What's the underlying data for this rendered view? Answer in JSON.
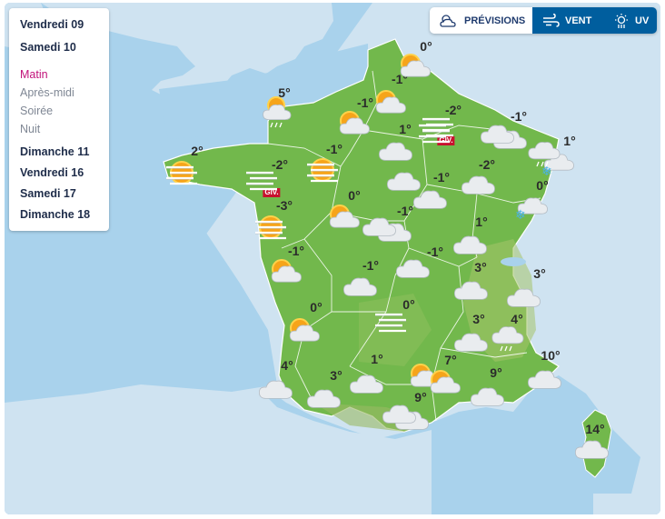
{
  "days": [
    {
      "label": "Vendredi 09"
    },
    {
      "label": "Samedi 10"
    },
    {
      "label": "Matin"
    },
    {
      "label": "Après-midi"
    },
    {
      "label": "Soirée"
    },
    {
      "label": "Nuit"
    },
    {
      "label": "Dimanche 11"
    },
    {
      "label": "Vendredi 16"
    },
    {
      "label": "Samedi 17"
    },
    {
      "label": "Dimanche 18"
    }
  ],
  "tabs": {
    "previsions": "PRÉVISIONS",
    "vent": "VENT",
    "uv": "UV"
  },
  "colors": {
    "sea": "#a9d2ec",
    "land_foreign": "#cfe3f1",
    "france": "#72b84c",
    "active_day": "#c2127a",
    "tab_active": "#005e9e",
    "giv_badge": "#c8102e"
  },
  "temperatures": [
    {
      "text": "0°"
    },
    {
      "text": "-1°"
    },
    {
      "text": "5°"
    },
    {
      "text": "-1°"
    },
    {
      "text": "-2°"
    },
    {
      "text": "1°"
    },
    {
      "text": "-1°"
    },
    {
      "text": "1°"
    },
    {
      "text": "2°"
    },
    {
      "text": "-1°"
    },
    {
      "text": "-2°"
    },
    {
      "text": "-2°"
    },
    {
      "text": "-1°"
    },
    {
      "text": "0°"
    },
    {
      "text": "0°"
    },
    {
      "text": "-3°"
    },
    {
      "text": "-1°"
    },
    {
      "text": "1°"
    },
    {
      "text": "-1°"
    },
    {
      "text": "-1°"
    },
    {
      "text": "3°"
    },
    {
      "text": "-1°"
    },
    {
      "text": "3°"
    },
    {
      "text": "0°"
    },
    {
      "text": "0°"
    },
    {
      "text": "3°"
    },
    {
      "text": "4°"
    },
    {
      "text": "4°"
    },
    {
      "text": "1°"
    },
    {
      "text": "7°"
    },
    {
      "text": "10°"
    },
    {
      "text": "3°"
    },
    {
      "text": "9°"
    },
    {
      "text": "9°"
    },
    {
      "text": "14°"
    }
  ],
  "giv_labels": [
    {
      "text": "GIV."
    },
    {
      "text": "GIV."
    }
  ],
  "weather_icons": [
    {
      "name": "sun-cloud-icon"
    },
    {
      "name": "sun-cloud-rain-icon"
    },
    {
      "name": "sun-cloud-icon"
    },
    {
      "name": "sun-cloud-icon"
    },
    {
      "name": "fog-icon"
    },
    {
      "name": "fog-icon"
    },
    {
      "name": "cloud-icon"
    },
    {
      "name": "cloud-icon"
    },
    {
      "name": "cloud-icon"
    },
    {
      "name": "cloud-snow-icon"
    },
    {
      "name": "sun-fog-icon"
    },
    {
      "name": "fog-icon"
    },
    {
      "name": "sun-fog-icon"
    },
    {
      "name": "sun-cloud-icon"
    },
    {
      "name": "cloud-icon"
    },
    {
      "name": "cloud-icon"
    },
    {
      "name": "cloud-snow-icon"
    },
    {
      "name": "sun-fog-icon"
    },
    {
      "name": "cloud-icon"
    },
    {
      "name": "cloud-icon"
    },
    {
      "name": "cloud-icon"
    },
    {
      "name": "sun-cloud-icon"
    },
    {
      "name": "cloud-icon"
    },
    {
      "name": "cloud-icon"
    },
    {
      "name": "cloud-icon"
    },
    {
      "name": "cloud-icon"
    },
    {
      "name": "fog-icon"
    },
    {
      "name": "sun-cloud-icon"
    },
    {
      "name": "cloud-icon"
    },
    {
      "name": "cloud-icon"
    },
    {
      "name": "cloud-rain-icon"
    },
    {
      "name": "cloud-icon"
    },
    {
      "name": "cloud-icon"
    },
    {
      "name": "cloud-icon"
    },
    {
      "name": "sun-cloud-icon"
    },
    {
      "name": "sun-cloud-icon"
    },
    {
      "name": "cloud-icon"
    },
    {
      "name": "cloud-icon"
    },
    {
      "name": "cloud-icon"
    },
    {
      "name": "cloud-icon"
    },
    {
      "name": "cloud-icon"
    },
    {
      "name": "cloud-rain-icon"
    }
  ]
}
